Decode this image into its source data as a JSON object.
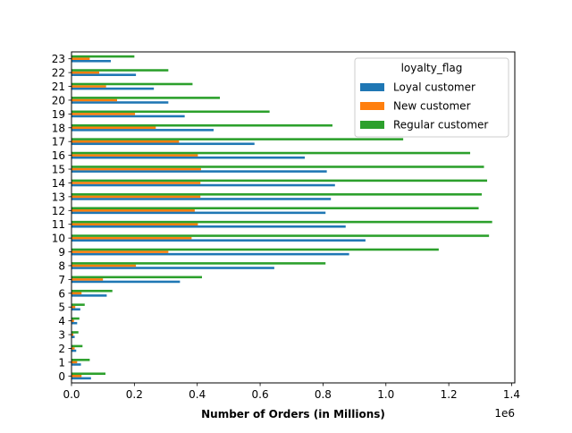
{
  "chart_data": {
    "type": "bar",
    "orientation": "horizontal",
    "categories": [
      "0",
      "1",
      "2",
      "3",
      "4",
      "5",
      "6",
      "7",
      "8",
      "9",
      "10",
      "11",
      "12",
      "13",
      "14",
      "15",
      "16",
      "17",
      "18",
      "19",
      "20",
      "21",
      "22",
      "23"
    ],
    "series": [
      {
        "name": "Loyal customer",
        "color": "#1f77b4",
        "values": [
          62000,
          30000,
          15000,
          10000,
          18000,
          28000,
          112000,
          345000,
          645000,
          883000,
          935000,
          872000,
          808000,
          825000,
          838000,
          812000,
          742000,
          582000,
          452000,
          360000,
          308000,
          262000,
          205000,
          125000
        ]
      },
      {
        "name": "New customer",
        "color": "#ff7f0e",
        "values": [
          32000,
          18000,
          10000,
          6000,
          8000,
          12000,
          32000,
          100000,
          205000,
          308000,
          382000,
          402000,
          392000,
          410000,
          410000,
          412000,
          402000,
          342000,
          268000,
          202000,
          145000,
          110000,
          88000,
          58000
        ]
      },
      {
        "name": "Regular customer",
        "color": "#2ca02c",
        "values": [
          108000,
          58000,
          35000,
          22000,
          25000,
          42000,
          130000,
          415000,
          808000,
          1168000,
          1328000,
          1338000,
          1295000,
          1305000,
          1322000,
          1312000,
          1268000,
          1055000,
          830000,
          630000,
          472000,
          385000,
          308000,
          200000
        ]
      }
    ],
    "xlabel": "Number of Orders (in Millions)",
    "xlim": [
      0,
      1410000
    ],
    "xticks": [
      0,
      200000,
      400000,
      600000,
      800000,
      1000000,
      1200000,
      1400000
    ],
    "xtick_labels": [
      "0.0",
      "0.2",
      "0.4",
      "0.6",
      "0.8",
      "1.0",
      "1.2",
      "1.4"
    ],
    "x_offset_text": "1e6",
    "legend": {
      "title": "loyalty_flag",
      "placement": "upper-right"
    },
    "grid": false
  }
}
